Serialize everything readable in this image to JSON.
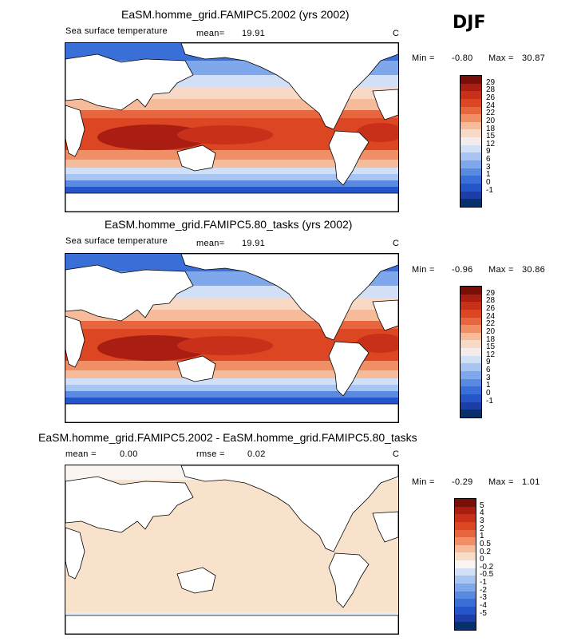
{
  "season": "DJF",
  "colors": {
    "sst_scale": [
      "#08306b",
      "#1b3fa6",
      "#2456c9",
      "#3a6fd8",
      "#5a8ae0",
      "#7ea8eb",
      "#a8c4f2",
      "#d2e0f7",
      "#f4ecea",
      "#f8d9c6",
      "#f5bb9a",
      "#f08f66",
      "#e6673f",
      "#dc4622",
      "#c9301a",
      "#a91d12",
      "#7a0f0a"
    ],
    "diff_scale": [
      "#08306b",
      "#1b3fa6",
      "#2456c9",
      "#3a6fd8",
      "#5a8ae0",
      "#7ea8eb",
      "#a8c4f2",
      "#d2e0f7",
      "#fbf5f2",
      "#f8dcc6",
      "#f5bb9a",
      "#f08f66",
      "#e6673f",
      "#dc4622",
      "#c9301a",
      "#a91d12",
      "#7a0f0a"
    ]
  },
  "panels": [
    {
      "title": "EaSM.homme_grid.FAMIPC5.2002 (yrs 2002)",
      "variable": "Sea surface temperature",
      "stat1_label": "mean=",
      "stat1_value": "19.91",
      "unit": "C",
      "min_label": "Min =",
      "min_value": "-0.80",
      "max_label": "Max =",
      "max_value": "30.87",
      "colorbar_labels": [
        "29",
        "28",
        "26",
        "24",
        "22",
        "20",
        "18",
        "15",
        "12",
        "9",
        "6",
        "3",
        "1",
        "0",
        "-1"
      ]
    },
    {
      "title": "EaSM.homme_grid.FAMIPC5.80_tasks (yrs 2002)",
      "variable": "Sea surface temperature",
      "stat1_label": "mean=",
      "stat1_value": "19.91",
      "unit": "C",
      "min_label": "Min =",
      "min_value": "-0.96",
      "max_label": "Max =",
      "max_value": "30.86",
      "colorbar_labels": [
        "29",
        "28",
        "26",
        "24",
        "22",
        "20",
        "18",
        "15",
        "12",
        "9",
        "6",
        "3",
        "1",
        "0",
        "-1"
      ]
    },
    {
      "title": "EaSM.homme_grid.FAMIPC5.2002 - EaSM.homme_grid.FAMIPC5.80_tasks",
      "stat1_label": "mean =",
      "stat1_value": "0.00",
      "stat2_label": "rmse =",
      "stat2_value": "0.02",
      "unit": "C",
      "min_label": "Min =",
      "min_value": "-0.29",
      "max_label": "Max =",
      "max_value": "1.01",
      "colorbar_labels": [
        "5",
        "4",
        "3",
        "2",
        "1",
        "0.5",
        "0.2",
        "0",
        "-0.2",
        "-0.5",
        "-1",
        "-2",
        "-3",
        "-4",
        "-5"
      ]
    }
  ],
  "chart_data": [
    {
      "type": "heatmap",
      "title": "EaSM.homme_grid.FAMIPC5.2002 (yrs 2002)",
      "subtitle": "Sea surface temperature",
      "unit": "C",
      "mean": 19.91,
      "min": -0.8,
      "max": 30.87,
      "levels": [
        -1,
        0,
        1,
        3,
        6,
        9,
        12,
        15,
        18,
        20,
        22,
        24,
        26,
        28,
        29
      ]
    },
    {
      "type": "heatmap",
      "title": "EaSM.homme_grid.FAMIPC5.80_tasks (yrs 2002)",
      "subtitle": "Sea surface temperature",
      "unit": "C",
      "mean": 19.91,
      "min": -0.96,
      "max": 30.86,
      "levels": [
        -1,
        0,
        1,
        3,
        6,
        9,
        12,
        15,
        18,
        20,
        22,
        24,
        26,
        28,
        29
      ]
    },
    {
      "type": "heatmap",
      "title": "EaSM.homme_grid.FAMIPC5.2002 - EaSM.homme_grid.FAMIPC5.80_tasks",
      "unit": "C",
      "mean": 0.0,
      "rmse": 0.02,
      "min": -0.29,
      "max": 1.01,
      "levels": [
        -5,
        -4,
        -3,
        -2,
        -1,
        -0.5,
        -0.2,
        0,
        0.2,
        0.5,
        1,
        2,
        3,
        4,
        5
      ]
    }
  ]
}
